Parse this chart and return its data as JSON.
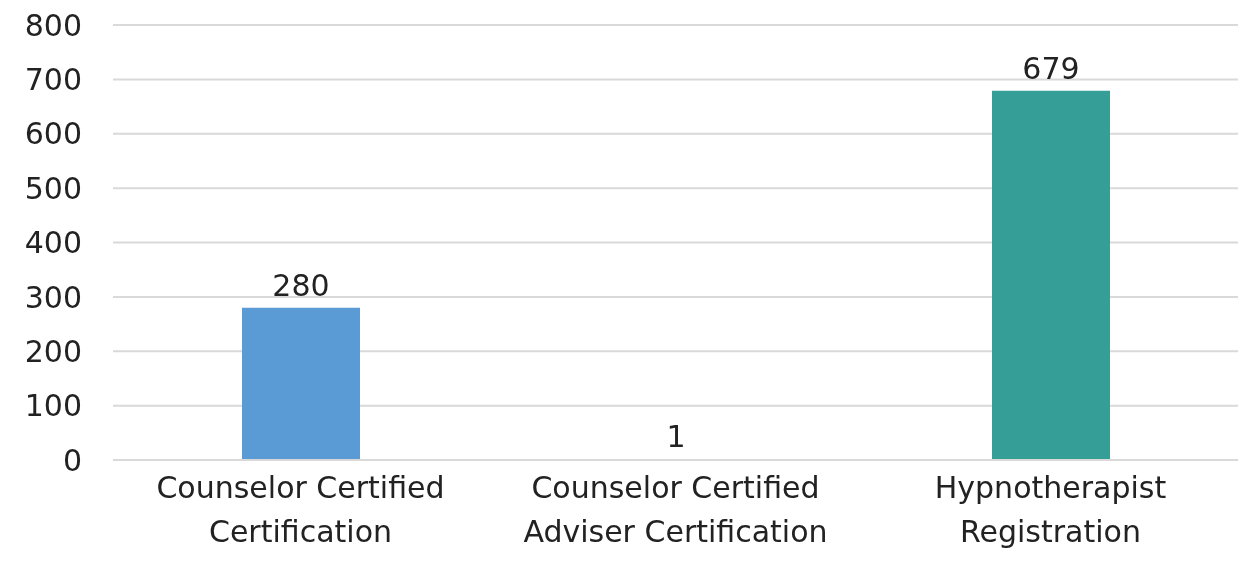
{
  "chart_data": {
    "type": "bar",
    "categories": [
      "Counselor Certified Certification",
      "Counselor Certified Adviser Certification",
      "Hypnotherapist Registration"
    ],
    "values": [
      280,
      1,
      679
    ],
    "colors": [
      "#5b9bd5",
      "#d6dcb4",
      "#359e96"
    ],
    "ylim": [
      0,
      800
    ],
    "yticks": [
      0,
      100,
      200,
      300,
      400,
      500,
      600,
      700,
      800
    ],
    "grid": "y",
    "data_labels": true
  }
}
